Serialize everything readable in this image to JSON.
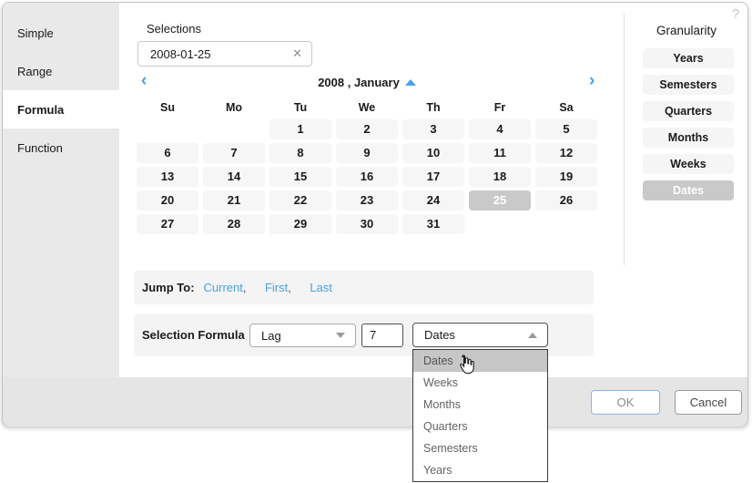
{
  "dialog": {
    "help_icon": "?",
    "sidebar": {
      "items": [
        {
          "label": "Simple",
          "active": false
        },
        {
          "label": "Range",
          "active": false
        },
        {
          "label": "Formula",
          "active": true
        },
        {
          "label": "Function",
          "active": false
        }
      ]
    },
    "selections": {
      "label": "Selections",
      "value": "2008-01-25",
      "clear_icon": "✕"
    },
    "calendar": {
      "title": "2008 , January",
      "prev_icon": "‹",
      "next_icon": "›",
      "day_headers": [
        "Su",
        "Mo",
        "Tu",
        "We",
        "Th",
        "Fr",
        "Sa"
      ],
      "weeks": [
        [
          "",
          "",
          "1",
          "2",
          "3",
          "4",
          "5"
        ],
        [
          "6",
          "7",
          "8",
          "9",
          "10",
          "11",
          "12"
        ],
        [
          "13",
          "14",
          "15",
          "16",
          "17",
          "18",
          "19"
        ],
        [
          "20",
          "21",
          "22",
          "23",
          "24",
          "25",
          "26"
        ],
        [
          "27",
          "28",
          "29",
          "30",
          "31",
          "",
          ""
        ]
      ],
      "selected_date": "25"
    },
    "jump_to": {
      "label": "Jump To:",
      "links": [
        "Current",
        "First",
        "Last"
      ]
    },
    "formula": {
      "label": "Selection Formula",
      "operation": "Lag",
      "value": "7",
      "unit": "Dates"
    },
    "unit_dropdown": {
      "items": [
        "Dates",
        "Weeks",
        "Months",
        "Quarters",
        "Semesters",
        "Years"
      ],
      "highlighted": "Dates"
    },
    "granularity": {
      "title": "Granularity",
      "options": [
        "Years",
        "Semesters",
        "Quarters",
        "Months",
        "Weeks",
        "Dates"
      ],
      "selected": "Dates"
    },
    "footer": {
      "ok_label": "OK",
      "cancel_label": "Cancel"
    },
    "colors": {
      "accent_blue": "#47a0ea",
      "selected_gray": "#c9c9c9",
      "panel_gray": "#e9e9e9"
    }
  }
}
